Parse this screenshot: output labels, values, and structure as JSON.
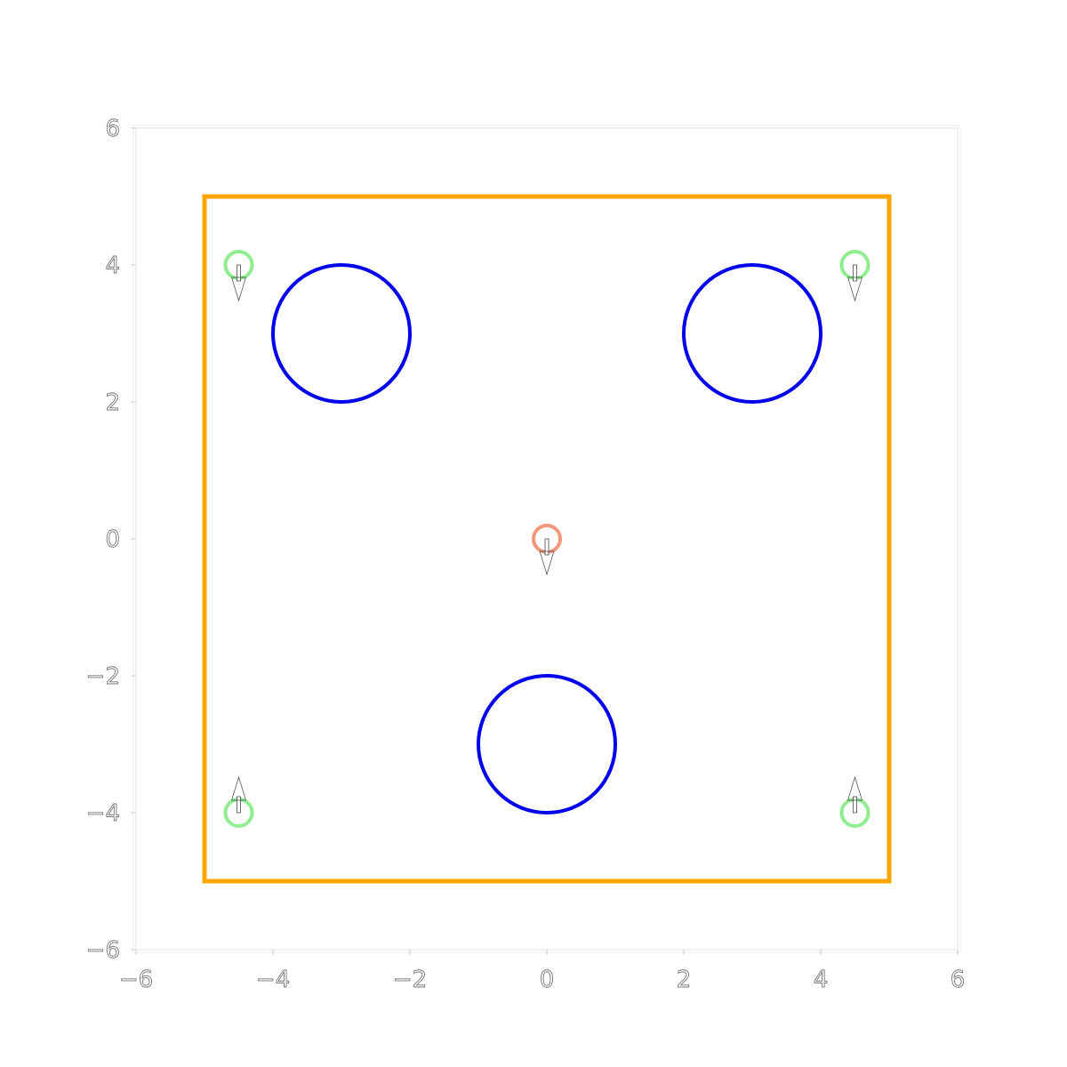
{
  "chart_data": {
    "type": "scatter",
    "title": "",
    "xlabel": "",
    "ylabel": "",
    "xlim": [
      -6,
      6
    ],
    "ylim": [
      -6,
      6
    ],
    "xticks": [
      -6,
      -4,
      -2,
      0,
      2,
      4,
      6
    ],
    "yticks": [
      -6,
      -4,
      -2,
      0,
      2,
      4,
      6
    ],
    "xtick_labels": [
      "−6",
      "−4",
      "−2",
      "0",
      "2",
      "4",
      "6"
    ],
    "ytick_labels": [
      "−6",
      "−4",
      "−2",
      "0",
      "2",
      "4",
      "6"
    ],
    "grid": false,
    "boundary": {
      "x": [
        -5,
        5
      ],
      "y": [
        -5,
        5
      ],
      "color": "#ffa500"
    },
    "obstacles": {
      "color": "#0000ee",
      "radius": 1,
      "centers": [
        [
          -3,
          3
        ],
        [
          3,
          3
        ],
        [
          0,
          -3
        ]
      ]
    },
    "agents": [
      {
        "x": 0,
        "y": 0,
        "heading": "down",
        "color": "#f5977a"
      },
      {
        "x": -4.5,
        "y": 4,
        "heading": "down",
        "color": "#90ee90"
      },
      {
        "x": 4.5,
        "y": 4,
        "heading": "down",
        "color": "#90ee90"
      },
      {
        "x": -4.5,
        "y": -4,
        "heading": "up",
        "color": "#90ee90"
      },
      {
        "x": 4.5,
        "y": -4,
        "heading": "up",
        "color": "#90ee90"
      }
    ]
  }
}
